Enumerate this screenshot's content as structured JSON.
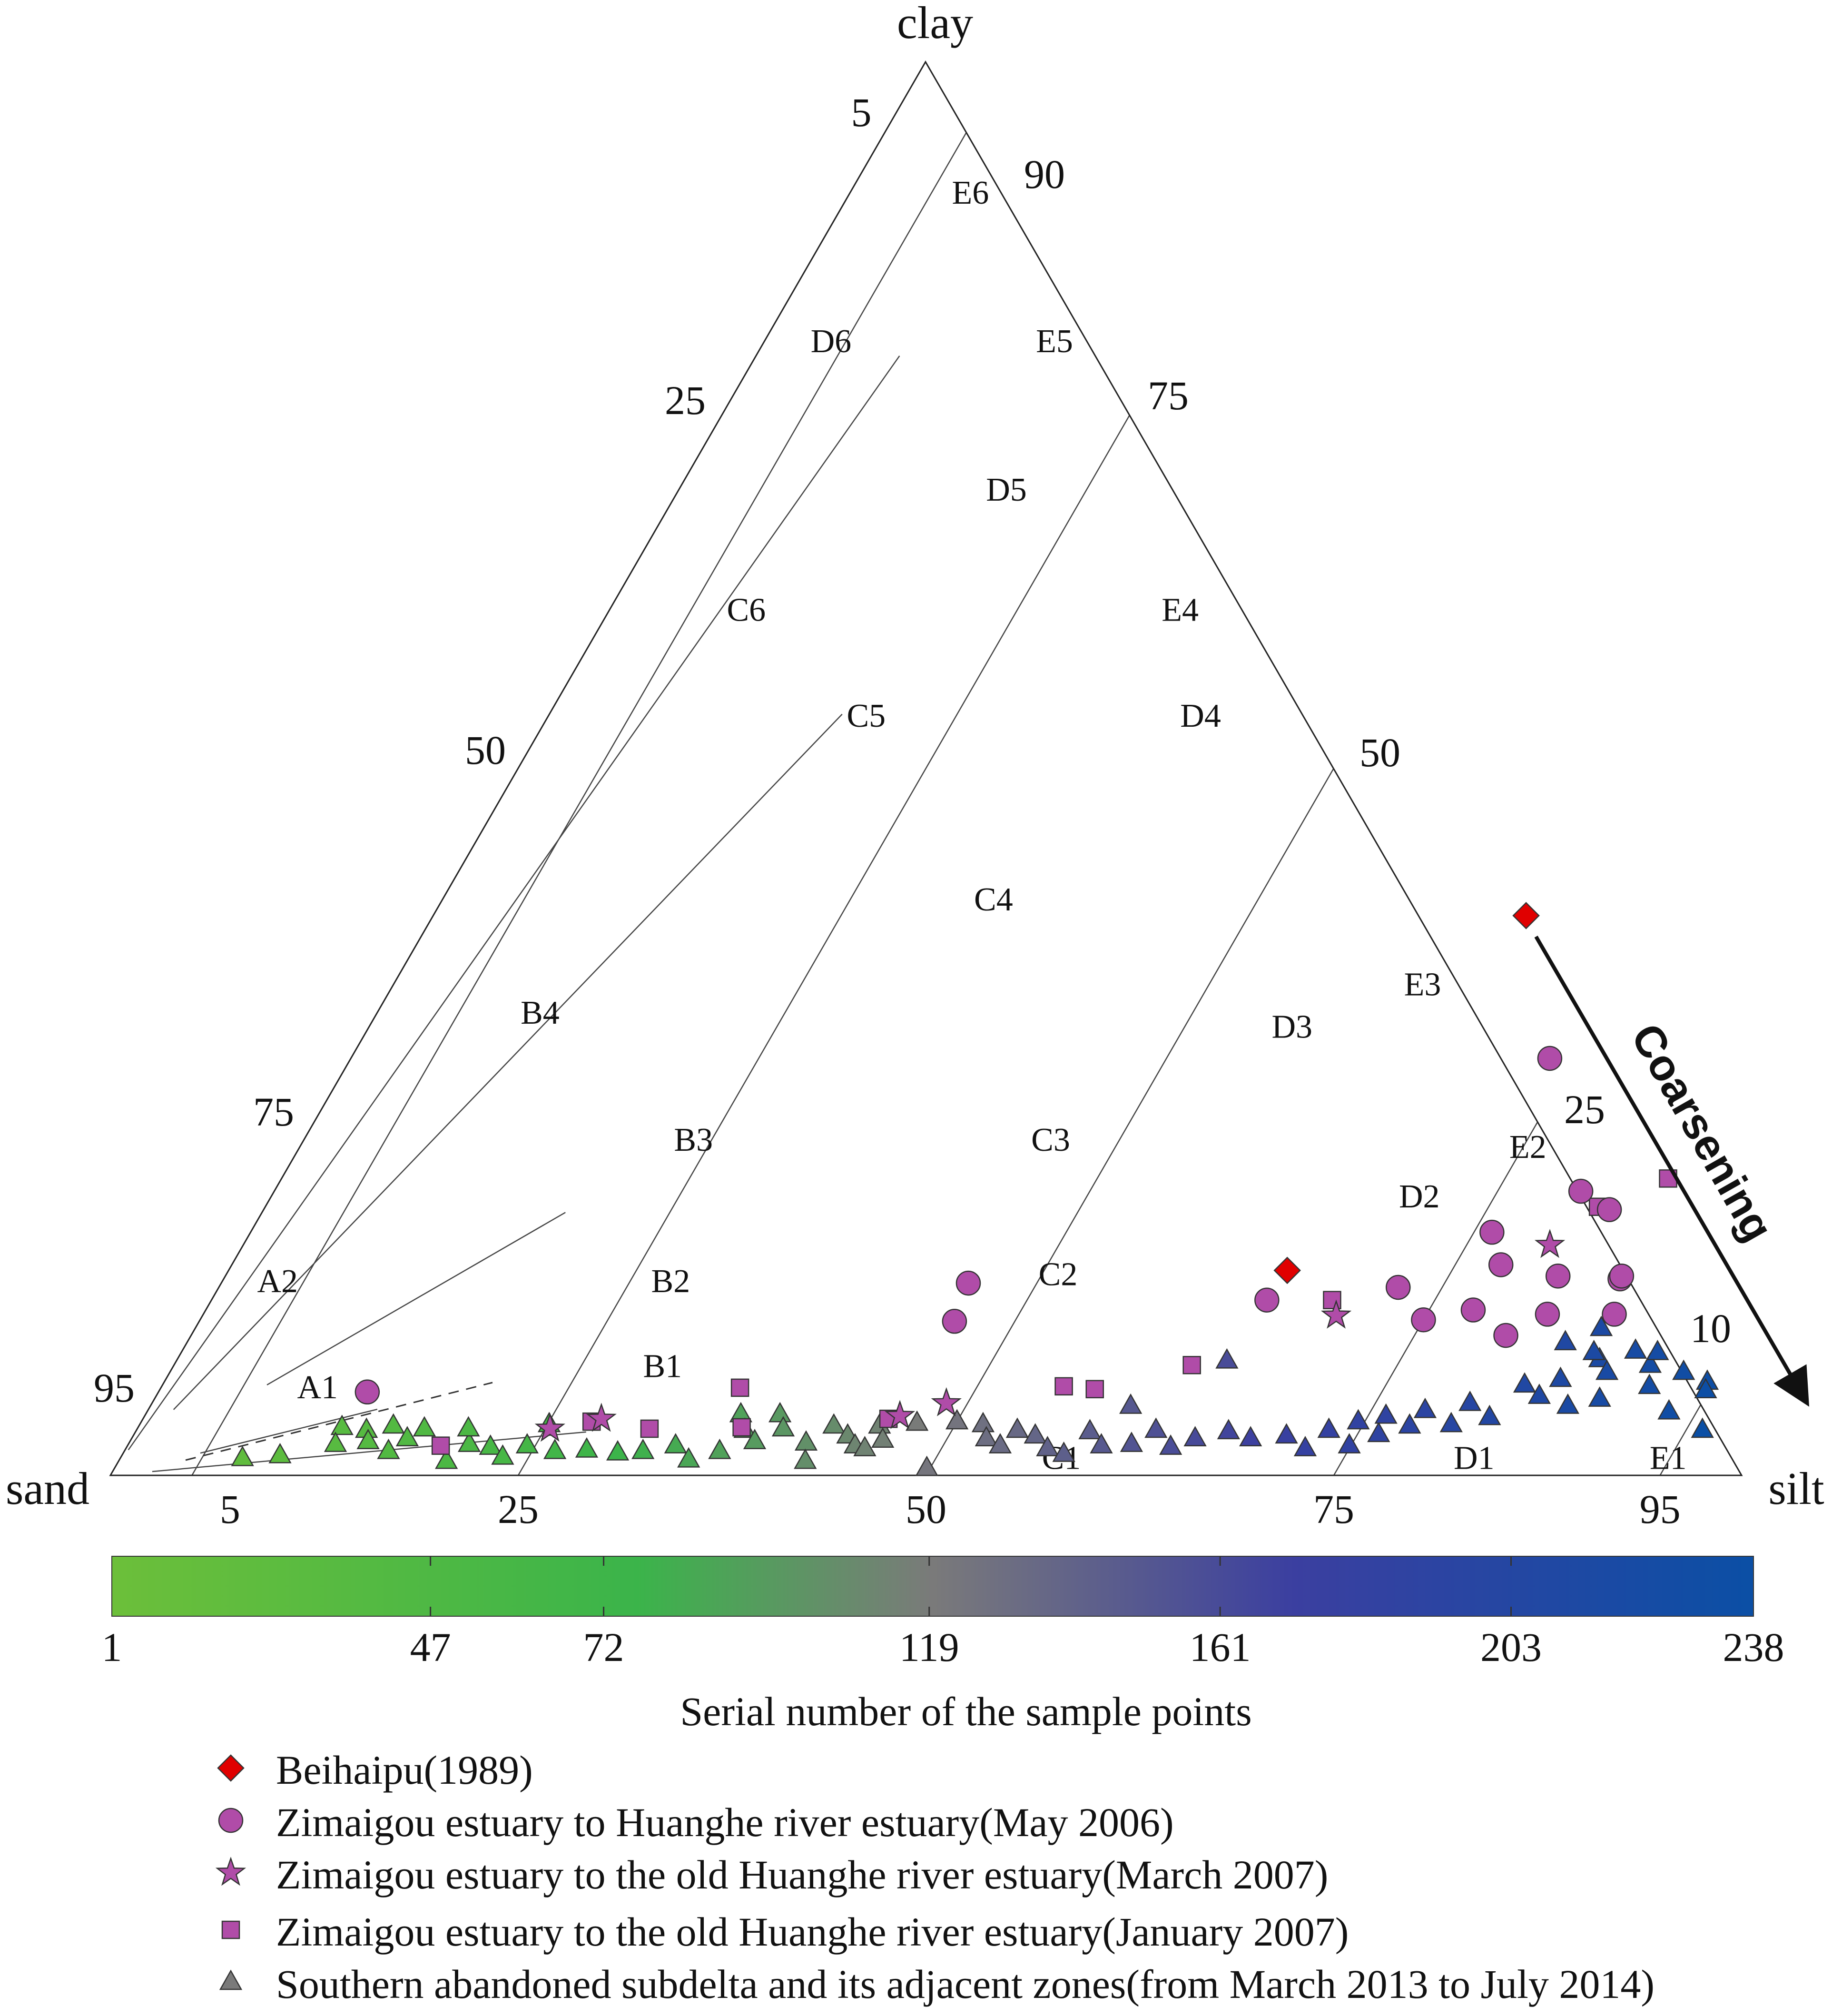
{
  "chart_data": {
    "type": "scatter",
    "subtype": "ternary",
    "title": "",
    "vertices": {
      "left": "sand",
      "top": "clay",
      "right": "silt"
    },
    "axis_ticks": {
      "sand": [
        "5",
        "25",
        "50",
        "75",
        "95"
      ],
      "clay": [
        "5",
        "25",
        "50",
        "75",
        "95"
      ],
      "silt": [
        "90",
        "75",
        "50",
        "25",
        "10"
      ],
      "base": [
        "5",
        "25",
        "50",
        "75",
        "95"
      ]
    },
    "zones": [
      {
        "name": "E6",
        "clay": 90.5,
        "silt": 7.5
      },
      {
        "name": "D6",
        "clay": 80,
        "silt": 4.2
      },
      {
        "name": "E5",
        "clay": 80,
        "silt": 17.9
      },
      {
        "name": "D5",
        "clay": 69.5,
        "silt": 20.2
      },
      {
        "name": "C6",
        "clay": 61,
        "silt": 8.5
      },
      {
        "name": "E4",
        "clay": 61,
        "silt": 35.1
      },
      {
        "name": "C5",
        "clay": 53.5,
        "silt": 19.6
      },
      {
        "name": "D4",
        "clay": 53.5,
        "silt": 40.1
      },
      {
        "name": "C4",
        "clay": 40.5,
        "silt": 33.9
      },
      {
        "name": "E3",
        "clay": 34.5,
        "silt": 63.2
      },
      {
        "name": "B4",
        "clay": 32.5,
        "silt": 10.1
      },
      {
        "name": "D3",
        "clay": 31.5,
        "silt": 56.7
      },
      {
        "name": "B3",
        "clay": 23.5,
        "silt": 24
      },
      {
        "name": "C3",
        "clay": 23.5,
        "silt": 45.9
      },
      {
        "name": "E2",
        "clay": 23,
        "silt": 75.4
      },
      {
        "name": "D2",
        "clay": 19.5,
        "silt": 70.5
      },
      {
        "name": "A2",
        "clay": 13.5,
        "silt": 3.5
      },
      {
        "name": "B2",
        "clay": 13.5,
        "silt": 27.6
      },
      {
        "name": "C2",
        "clay": 14,
        "silt": 51.1
      },
      {
        "name": "A1",
        "clay": 6,
        "silt": 9.7
      },
      {
        "name": "B1",
        "clay": 7.5,
        "silt": 30.1
      },
      {
        "name": "C1",
        "clay": 1,
        "silt": 57.8
      },
      {
        "name": "D1",
        "clay": 1,
        "silt": 83.1
      },
      {
        "name": "E1",
        "clay": 1,
        "silt": 95
      }
    ],
    "series": [
      {
        "name": "Beihaipu(1989)",
        "marker": "diamond",
        "color": "#e00000",
        "points": [
          {
            "clay": 14.5,
            "silt": 64.9
          },
          {
            "clay": 39.6,
            "silt": 67
          }
        ]
      },
      {
        "name": "Zimaigou estuary to Huanghe river estuary(May 2006)",
        "marker": "circle",
        "color": "#b04ca8",
        "points": [
          {
            "clay": 5.9,
            "silt": 12.8
          },
          {
            "clay": 13.6,
            "silt": 45.8
          },
          {
            "clay": 10.9,
            "silt": 46.3
          },
          {
            "clay": 12.4,
            "silt": 64.7
          },
          {
            "clay": 13.3,
            "silt": 72.3
          },
          {
            "clay": 11,
            "silt": 75
          },
          {
            "clay": 17.2,
            "silt": 76.1
          },
          {
            "clay": 14.9,
            "silt": 77.8
          },
          {
            "clay": 11.7,
            "silt": 77.7
          },
          {
            "clay": 9.9,
            "silt": 80.6
          },
          {
            "clay": 14.1,
            "silt": 81.7
          },
          {
            "clay": 11.4,
            "silt": 82.4
          },
          {
            "clay": 13.9,
            "silt": 85.6
          },
          {
            "clay": 29.5,
            "silt": 73.5
          },
          {
            "clay": 20.1,
            "silt": 80.1
          },
          {
            "clay": 18.8,
            "silt": 82.5
          },
          {
            "clay": 14.1,
            "silt": 85.6
          },
          {
            "clay": 11.4,
            "silt": 86.5
          }
        ]
      },
      {
        "name": "Zimaigou estuary to the old Huanghe river estuary(March 2007)",
        "marker": "star",
        "color": "#b04ca8",
        "points": [
          {
            "clay": 3.3,
            "silt": 25.3
          },
          {
            "clay": 4,
            "silt": 28.1
          },
          {
            "clay": 5.1,
            "silt": 48.7
          },
          {
            "clay": 4.2,
            "silt": 46.3
          },
          {
            "clay": 11.3,
            "silt": 69.5
          },
          {
            "clay": 16.3,
            "silt": 80.1
          }
        ]
      },
      {
        "name": "Zimaigou estuary to the old Huanghe river estuary(January 2007)",
        "marker": "square",
        "color": "#b04ca8",
        "points": [
          {
            "clay": 2.1,
            "silt": 19.2
          },
          {
            "clay": 3.8,
            "silt": 27.6
          },
          {
            "clay": 3.3,
            "silt": 31.4
          },
          {
            "clay": 6.2,
            "silt": 35.5
          },
          {
            "clay": 3.4,
            "silt": 37
          },
          {
            "clay": 4,
            "silt": 45.7
          },
          {
            "clay": 6.3,
            "silt": 55.3
          },
          {
            "clay": 6.1,
            "silt": 57.3
          },
          {
            "clay": 7.8,
            "silt": 62.4
          },
          {
            "clay": 12.4,
            "silt": 68.7
          },
          {
            "clay": 19,
            "silt": 81.7
          },
          {
            "clay": 21,
            "silt": 85
          }
        ]
      },
      {
        "name": "Southern abandoned subdelta and its adjacent zones(from March 2013 to July 2014)",
        "marker": "triangle",
        "color": "#7a7a7a",
        "points": [
          {
            "clay": 1.2,
            "silt": 7.5
          },
          {
            "clay": 1.4,
            "silt": 9.7
          },
          {
            "clay": 3.4,
            "silt": 12.5
          },
          {
            "clay": 2.2,
            "silt": 12.7
          },
          {
            "clay": 3.2,
            "silt": 14.1
          },
          {
            "clay": 2.4,
            "silt": 14.6
          },
          {
            "clay": 1.7,
            "silt": 16.2
          },
          {
            "clay": 3.5,
            "silt": 15.6
          },
          {
            "clay": 2.6,
            "silt": 16.9
          },
          {
            "clay": 3.3,
            "silt": 17.6
          },
          {
            "clay": 2.2,
            "silt": 20.9
          },
          {
            "clay": 3.3,
            "silt": 20.3
          },
          {
            "clay": 1,
            "silt": 20.1
          },
          {
            "clay": 2,
            "silt": 22.3
          },
          {
            "clay": 1.3,
            "silt": 23.4
          },
          {
            "clay": 2.1,
            "silt": 24.5
          },
          {
            "clay": 3.6,
            "silt": 25.1
          },
          {
            "clay": 1.7,
            "silt": 26.4
          },
          {
            "clay": 1.8,
            "silt": 28.3
          },
          {
            "clay": 1.6,
            "silt": 30.3
          },
          {
            "clay": 1.7,
            "silt": 31.8
          },
          {
            "clay": 2.1,
            "silt": 33.6
          },
          {
            "clay": 1.1,
            "silt": 34.9
          },
          {
            "clay": 1.7,
            "silt": 36.5
          },
          {
            "clay": 4.3,
            "silt": 36.5
          },
          {
            "clay": 3.2,
            "silt": 37.3
          },
          {
            "clay": 2.4,
            "silt": 38.3
          },
          {
            "clay": 4.3,
            "silt": 38.9
          },
          {
            "clay": 3.3,
            "silt": 39.6
          },
          {
            "clay": 2.3,
            "silt": 41.5
          },
          {
            "clay": 1,
            "silt": 42.1
          },
          {
            "clay": 3.5,
            "silt": 42.6
          },
          {
            "clay": 2.8,
            "silt": 43.8
          },
          {
            "clay": 2.1,
            "silt": 44.6
          },
          {
            "clay": 1.9,
            "silt": 45.3
          },
          {
            "clay": 3.5,
            "silt": 45.4
          },
          {
            "clay": 2.5,
            "silt": 46.1
          },
          {
            "clay": 3.7,
            "silt": 47.6
          },
          {
            "clay": 3.8,
            "silt": 50
          },
          {
            "clay": 3.6,
            "silt": 51.7
          },
          {
            "clay": 2.6,
            "silt": 52.4
          },
          {
            "clay": 2.1,
            "silt": 53.5
          },
          {
            "clay": 3.2,
            "silt": 54
          },
          {
            "clay": 2.8,
            "silt": 55.3
          },
          {
            "clay": 1.9,
            "silt": 56.5
          },
          {
            "clay": 1.5,
            "silt": 57.7
          },
          {
            "clay": 3.1,
            "silt": 58.5
          },
          {
            "clay": 2.1,
            "silt": 59.7
          },
          {
            "clay": 4.9,
            "silt": 60.1
          },
          {
            "clay": 2.2,
            "silt": 61.5
          },
          {
            "clay": 3.2,
            "silt": 62.5
          },
          {
            "clay": 2,
            "silt": 64
          },
          {
            "clay": 2.6,
            "silt": 65.2
          },
          {
            "clay": 3.1,
            "silt": 67
          },
          {
            "clay": 2.6,
            "silt": 68.6
          },
          {
            "clay": 2.8,
            "silt": 70.7
          },
          {
            "clay": 1.9,
            "silt": 72.3
          },
          {
            "clay": 3.2,
            "silt": 73.1
          },
          {
            "clay": 2.1,
            "silt": 74.9
          },
          {
            "clay": 3.8,
            "silt": 74.6
          },
          {
            "clay": 2.9,
            "silt": 76.3
          },
          {
            "clay": 4.2,
            "silt": 76.1
          },
          {
            "clay": 3.5,
            "silt": 77.9
          },
          {
            "clay": 4.6,
            "silt": 78.3
          },
          {
            "clay": 3.6,
            "silt": 80.4
          },
          {
            "clay": 5.1,
            "silt": 80.8
          },
          {
            "clay": 4.1,
            "silt": 82.5
          },
          {
            "clay": 6.4,
            "silt": 83.5
          },
          {
            "clay": 5.6,
            "silt": 84.8
          },
          {
            "clay": 6.8,
            "silt": 85.5
          },
          {
            "clay": 4.9,
            "silt": 86.9
          },
          {
            "clay": 8.2,
            "silt": 87.2
          },
          {
            "clay": 7.3,
            "silt": 88.1
          },
          {
            "clay": 5.4,
            "silt": 88.6
          },
          {
            "clay": 8.8,
            "silt": 89.1
          },
          {
            "clay": 7.8,
            "silt": 90.5
          },
          {
            "clay": 6.3,
            "silt": 91.2
          },
          {
            "clay": 7.3,
            "silt": 92.8
          },
          {
            "clay": 6.6,
            "silt": 94.6
          },
          {
            "clay": 4.5,
            "silt": 93.3
          },
          {
            "clay": 3.2,
            "silt": 96
          },
          {
            "clay": 0.5,
            "silt": 49.8
          },
          {
            "clay": 8.1,
            "silt": 64.4
          },
          {
            "clay": 9.4,
            "silt": 84.5
          },
          {
            "clay": 10.4,
            "silt": 86.2
          },
          {
            "clay": 8.7,
            "silt": 86.6
          },
          {
            "clay": 8.7,
            "silt": 90.5
          },
          {
            "clay": 6,
            "silt": 94.8
          }
        ]
      }
    ],
    "colorbar": {
      "label": "Serial number of the sample points",
      "range": [
        1,
        238
      ],
      "ticks": [
        "1",
        "47",
        "72",
        "119",
        "161",
        "203",
        "238"
      ],
      "colors": [
        "#6cbf3a",
        "#3bb44a",
        "#7a7a7a",
        "#3b3fa0",
        "#0b4fa5"
      ]
    },
    "annotation": {
      "text": "Coarsening",
      "direction": "down-right"
    }
  }
}
